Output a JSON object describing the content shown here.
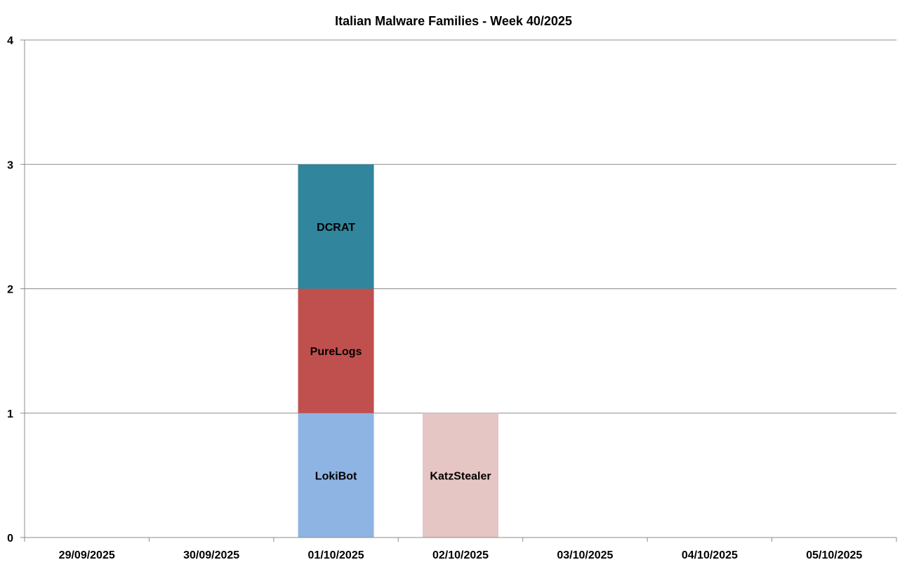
{
  "chart_data": {
    "type": "bar",
    "stacked": true,
    "title": "Italian Malware Families - Week 40/2025",
    "xlabel": "",
    "ylabel": "",
    "categories": [
      "29/09/2025",
      "30/09/2025",
      "01/10/2025",
      "02/10/2025",
      "03/10/2025",
      "04/10/2025",
      "05/10/2025"
    ],
    "ylim": [
      0,
      4
    ],
    "yticks": [
      "0",
      "1",
      "2",
      "3",
      "4"
    ],
    "grid": true,
    "legend": "none",
    "series": [
      {
        "name": "LokiBot",
        "color": "#8EB4E3",
        "values": [
          0,
          0,
          1,
          0,
          0,
          0,
          0
        ]
      },
      {
        "name": "PureLogs",
        "color": "#C0504D",
        "values": [
          0,
          0,
          1,
          0,
          0,
          0,
          0
        ]
      },
      {
        "name": "DCRAT",
        "color": "#31859C",
        "values": [
          0,
          0,
          1,
          0,
          0,
          0,
          0
        ]
      },
      {
        "name": "KatzStealer",
        "color": "#E6C5C5",
        "values": [
          0,
          0,
          0,
          1,
          0,
          0,
          0
        ]
      }
    ]
  }
}
